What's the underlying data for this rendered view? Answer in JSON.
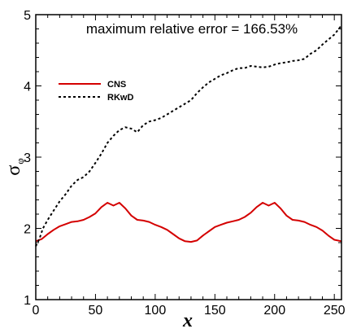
{
  "chart_data": {
    "type": "line",
    "annotation": "maximum relative error = 166.53%",
    "xlabel": "x",
    "ylabel": "σ",
    "ylabel_sub": "φ",
    "xlim": [
      0,
      256
    ],
    "ylim": [
      1,
      5
    ],
    "xticks": [
      0,
      50,
      100,
      150,
      200,
      250
    ],
    "yticks": [
      1,
      2,
      3,
      4,
      5
    ],
    "xtick_labels": [
      "0",
      "50",
      "100",
      "150",
      "200",
      "250"
    ],
    "ytick_labels": [
      "1",
      "2",
      "3",
      "4",
      "5"
    ],
    "legend_position": "upper-left",
    "grid": false,
    "series": [
      {
        "name": "CNS",
        "color": "#d40000",
        "style": "solid",
        "x": [
          0,
          5,
          10,
          15,
          20,
          25,
          30,
          35,
          40,
          45,
          50,
          55,
          60,
          65,
          70,
          75,
          80,
          85,
          90,
          95,
          100,
          105,
          110,
          115,
          120,
          125,
          130,
          135,
          140,
          145,
          150,
          155,
          160,
          165,
          170,
          175,
          180,
          185,
          190,
          195,
          200,
          205,
          210,
          215,
          220,
          225,
          230,
          235,
          240,
          245,
          250,
          256
        ],
        "y": [
          1.82,
          1.85,
          1.92,
          1.98,
          2.03,
          2.06,
          2.09,
          2.1,
          2.12,
          2.16,
          2.21,
          2.3,
          2.36,
          2.32,
          2.36,
          2.28,
          2.18,
          2.12,
          2.11,
          2.09,
          2.05,
          2.02,
          1.98,
          1.92,
          1.86,
          1.82,
          1.81,
          1.83,
          1.9,
          1.96,
          2.02,
          2.05,
          2.08,
          2.1,
          2.12,
          2.16,
          2.22,
          2.3,
          2.36,
          2.32,
          2.36,
          2.28,
          2.18,
          2.12,
          2.11,
          2.09,
          2.05,
          2.02,
          1.97,
          1.9,
          1.84,
          1.82
        ]
      },
      {
        "name": "RKwD",
        "color": "#000000",
        "style": "dashed",
        "x": [
          0,
          3,
          6,
          10,
          15,
          20,
          25,
          30,
          35,
          40,
          45,
          50,
          55,
          60,
          65,
          70,
          75,
          80,
          85,
          90,
          95,
          100,
          105,
          110,
          115,
          120,
          125,
          130,
          135,
          140,
          145,
          150,
          155,
          160,
          165,
          170,
          175,
          180,
          185,
          190,
          195,
          200,
          205,
          210,
          215,
          220,
          225,
          230,
          235,
          240,
          245,
          250,
          256
        ],
        "y": [
          1.75,
          1.85,
          2.0,
          2.12,
          2.25,
          2.38,
          2.48,
          2.6,
          2.68,
          2.72,
          2.8,
          2.92,
          3.05,
          3.2,
          3.3,
          3.38,
          3.42,
          3.4,
          3.35,
          3.45,
          3.5,
          3.52,
          3.55,
          3.6,
          3.65,
          3.7,
          3.75,
          3.8,
          3.9,
          3.98,
          4.05,
          4.1,
          4.15,
          4.18,
          4.22,
          4.25,
          4.25,
          4.28,
          4.27,
          4.26,
          4.27,
          4.3,
          4.32,
          4.33,
          4.35,
          4.36,
          4.38,
          4.45,
          4.5,
          4.58,
          4.65,
          4.72,
          4.85
        ]
      }
    ]
  }
}
